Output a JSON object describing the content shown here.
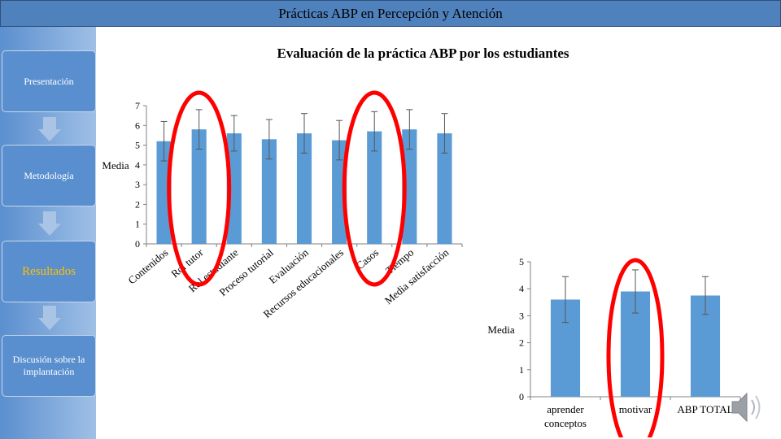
{
  "header": {
    "title": "Prácticas ABP en Percepción y Atención"
  },
  "sidebar": {
    "items": [
      {
        "label": "Presentación",
        "active": false
      },
      {
        "label": "Metodología",
        "active": false
      },
      {
        "label": "Resultados",
        "active": true
      },
      {
        "label": "Discusión sobre la implantación",
        "active": false
      }
    ],
    "arrow_icon": "down-arrow-icon"
  },
  "main": {
    "title": "Evaluación de la práctica ABP por los estudiantes"
  },
  "chart_data": [
    {
      "type": "bar",
      "ylabel": "Media",
      "ylim": [
        0,
        7
      ],
      "yticks": [
        0,
        1,
        2,
        3,
        4,
        5,
        6,
        7
      ],
      "categories": [
        "Contenidos",
        "Rol tutor",
        "Rol estudiante",
        "Proceso tutorial",
        "Evaluación",
        "Recursos educacionales",
        "Casos",
        "Tiempo",
        "Media satisfacción"
      ],
      "values": [
        5.2,
        5.8,
        5.6,
        5.3,
        5.6,
        5.25,
        5.7,
        5.8,
        5.6
      ],
      "errors": [
        1.0,
        1.0,
        0.9,
        1.0,
        1.0,
        1.0,
        1.0,
        1.0,
        1.0
      ],
      "bar_color": "#5b9bd5",
      "highlight_color": "#ff0000"
    },
    {
      "type": "bar",
      "ylabel": "Media",
      "ylim": [
        0,
        5
      ],
      "yticks": [
        0,
        1,
        2,
        3,
        4,
        5
      ],
      "categories": [
        "aprender conceptos",
        "motivar",
        "ABP TOTAL"
      ],
      "values": [
        3.6,
        3.9,
        3.75
      ],
      "errors": [
        0.85,
        0.8,
        0.7
      ],
      "bar_color": "#5b9bd5",
      "highlight_color": "#ff0000"
    }
  ],
  "media_controls": {
    "icon": "speaker-icon"
  }
}
